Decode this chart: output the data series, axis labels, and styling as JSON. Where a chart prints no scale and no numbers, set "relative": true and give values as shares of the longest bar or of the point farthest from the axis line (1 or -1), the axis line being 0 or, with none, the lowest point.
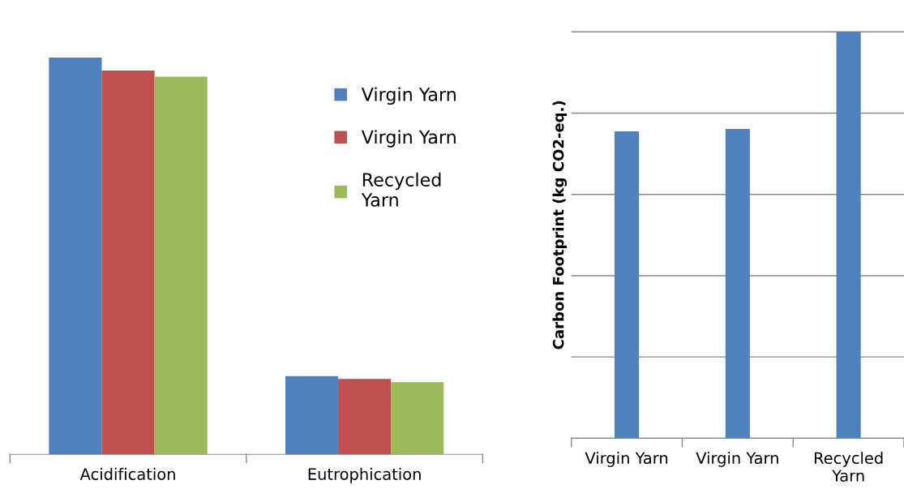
{
  "chart_data": [
    {
      "type": "bar",
      "relative": true,
      "categories": [
        "Acidification",
        "Eutrophication"
      ],
      "series": [
        {
          "name": "Virgin Yarn",
          "color": "#4f81bd",
          "values": [
            1,
            0.197
          ]
        },
        {
          "name": "Virgin Yarn",
          "color": "#c0504d",
          "values": [
            0.967,
            0.19
          ]
        },
        {
          "name": "Recycled\nYarn",
          "color": "#9bbb59",
          "values": [
            0.952,
            0.182
          ]
        }
      ],
      "legend": "top right",
      "grid": false
    },
    {
      "type": "bar",
      "relative": true,
      "categories": [
        "Virgin Yarn",
        "Virgin Yarn",
        "Recycled\nYarn"
      ],
      "series": [
        {
          "color": "#4f81bd",
          "values": [
            0.755,
            0.761,
            1
          ]
        }
      ],
      "ylabel": "Carbon Footprint (kg CO2-eq.)",
      "grid": "y"
    }
  ]
}
